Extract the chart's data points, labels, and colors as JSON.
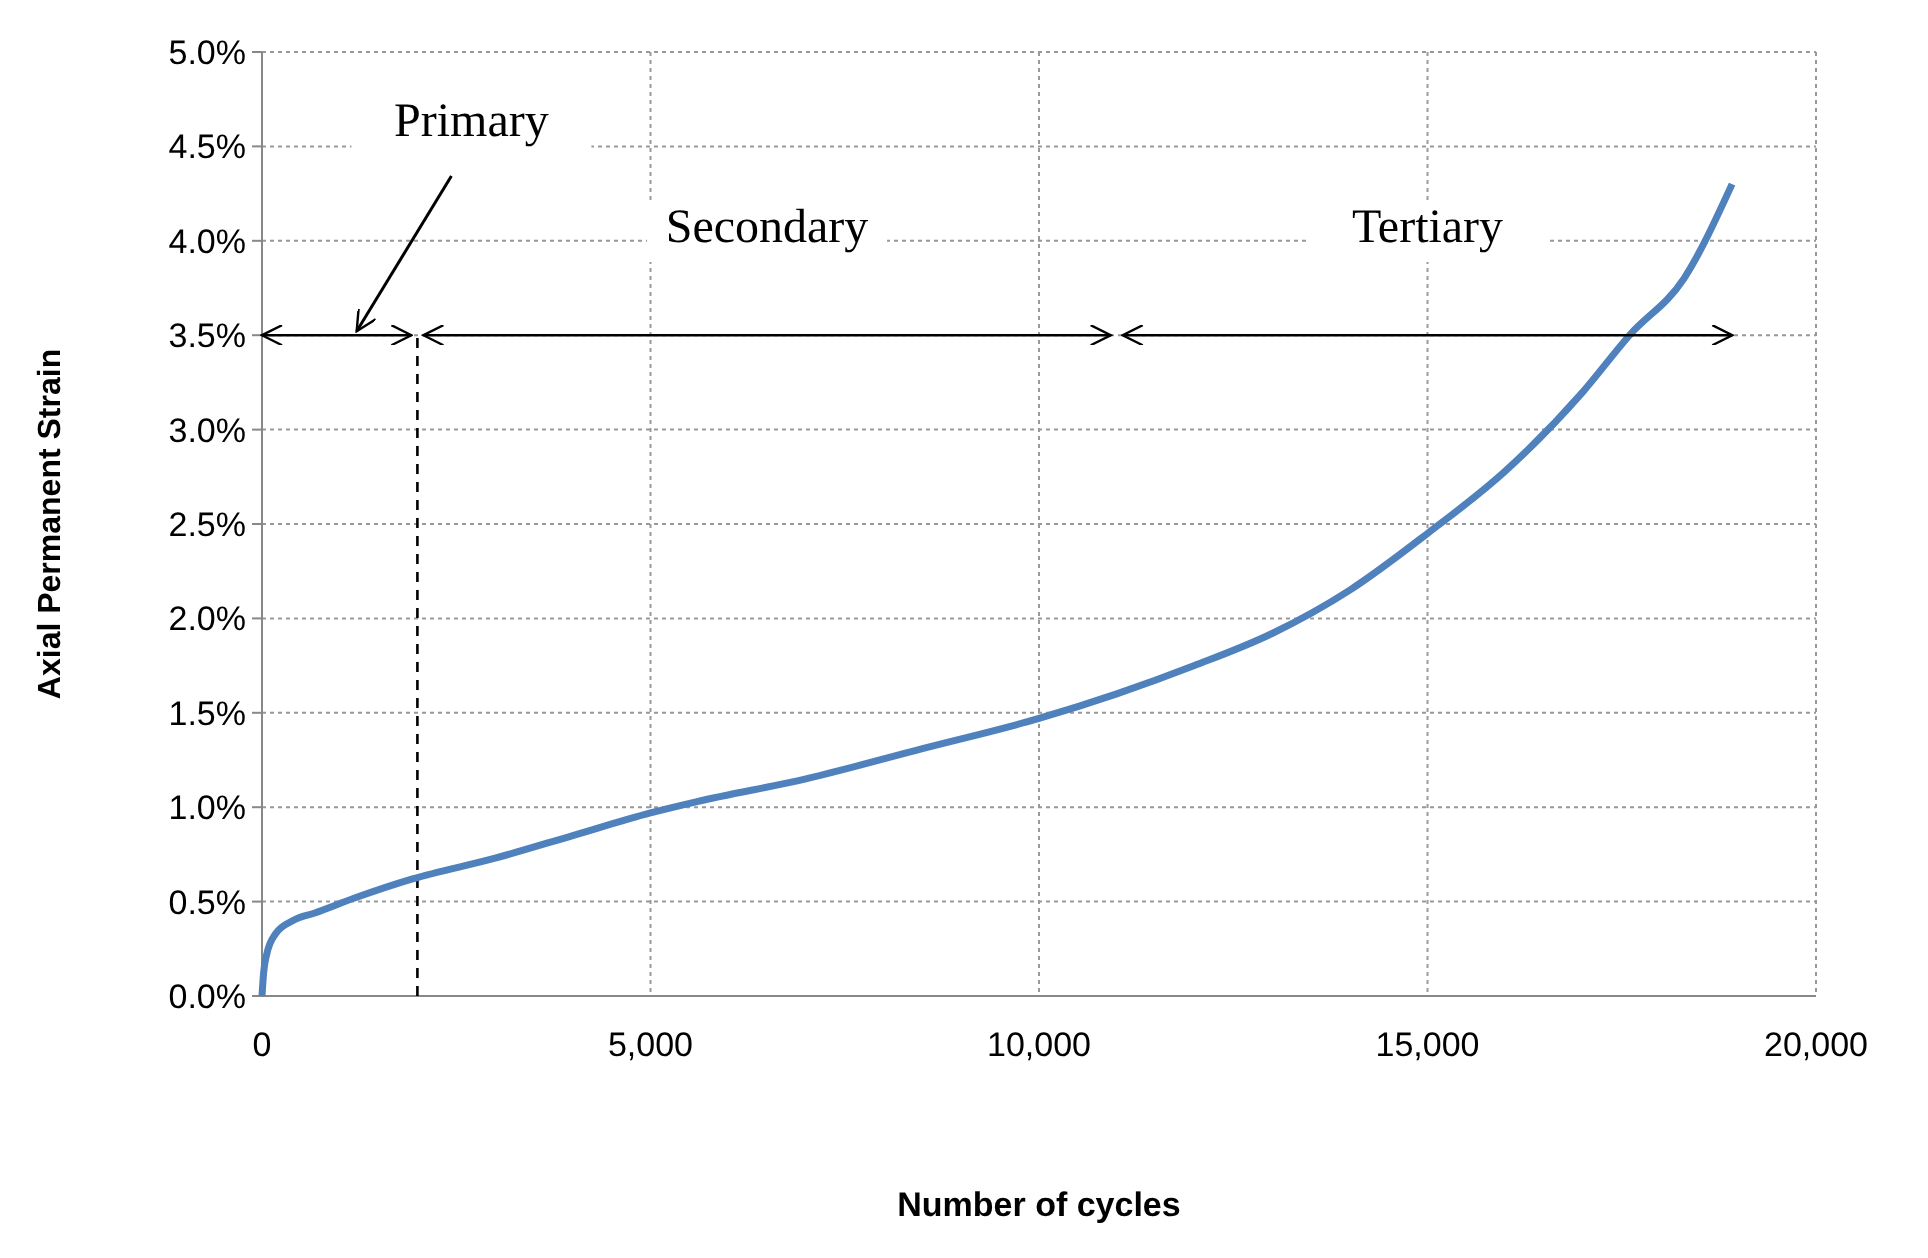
{
  "chart_data": {
    "type": "line",
    "xlabel": "Number of cycles",
    "ylabel": "Axial Permanent Strain",
    "series": [
      {
        "color": "#4f81bd",
        "x": [
          0,
          20,
          60,
          175,
          400,
          680,
          1200,
          1937,
          3000,
          4000,
          5000,
          5600,
          7000,
          8500,
          10000,
          11000,
          12000,
          13000,
          14000,
          15000,
          16000,
          17000,
          17600,
          18300,
          18920
        ],
        "values": [
          0,
          0.12,
          0.22,
          0.33,
          0.4,
          0.44,
          0.52,
          0.62,
          0.73,
          0.85,
          0.97,
          1.03,
          1.15,
          1.31,
          1.47,
          1.6,
          1.75,
          1.92,
          2.15,
          2.45,
          2.78,
          3.2,
          3.5,
          3.8,
          4.3
        ]
      }
    ],
    "xlim": [
      0,
      20000
    ],
    "xticks": [
      0,
      {
        "value": 5000,
        "label": "5,000"
      },
      {
        "value": 10000,
        "label": "10,000"
      },
      {
        "value": 15000,
        "label": "15,000"
      },
      {
        "value": 20000,
        "label": "20,000"
      }
    ],
    "ylim": [
      0,
      5
    ],
    "yticks": [
      {
        "value": 0,
        "label": "0.0%"
      },
      {
        "value": 0.5,
        "label": "0.5%"
      },
      {
        "value": 1,
        "label": "1.0%"
      },
      {
        "value": 1.5,
        "label": "1.5%"
      },
      {
        "value": 2,
        "label": "2.0%"
      },
      {
        "value": 2.5,
        "label": "2.5%"
      },
      {
        "value": 3,
        "label": "3.0%"
      },
      {
        "value": 3.5,
        "label": "3.5%"
      },
      {
        "value": 4,
        "label": "4.0%"
      },
      {
        "value": 4.5,
        "label": "4.5%"
      },
      {
        "value": 5,
        "label": "5.0%"
      }
    ],
    "grid": true,
    "marker": "none",
    "line_style": "solid",
    "ref_lines": [
      {
        "axis": "x",
        "value": 2000,
        "line_style": "dashed",
        "color": "#000000"
      }
    ],
    "annotations": [
      "Primary",
      "Secondary",
      "Tertiary"
    ]
  }
}
